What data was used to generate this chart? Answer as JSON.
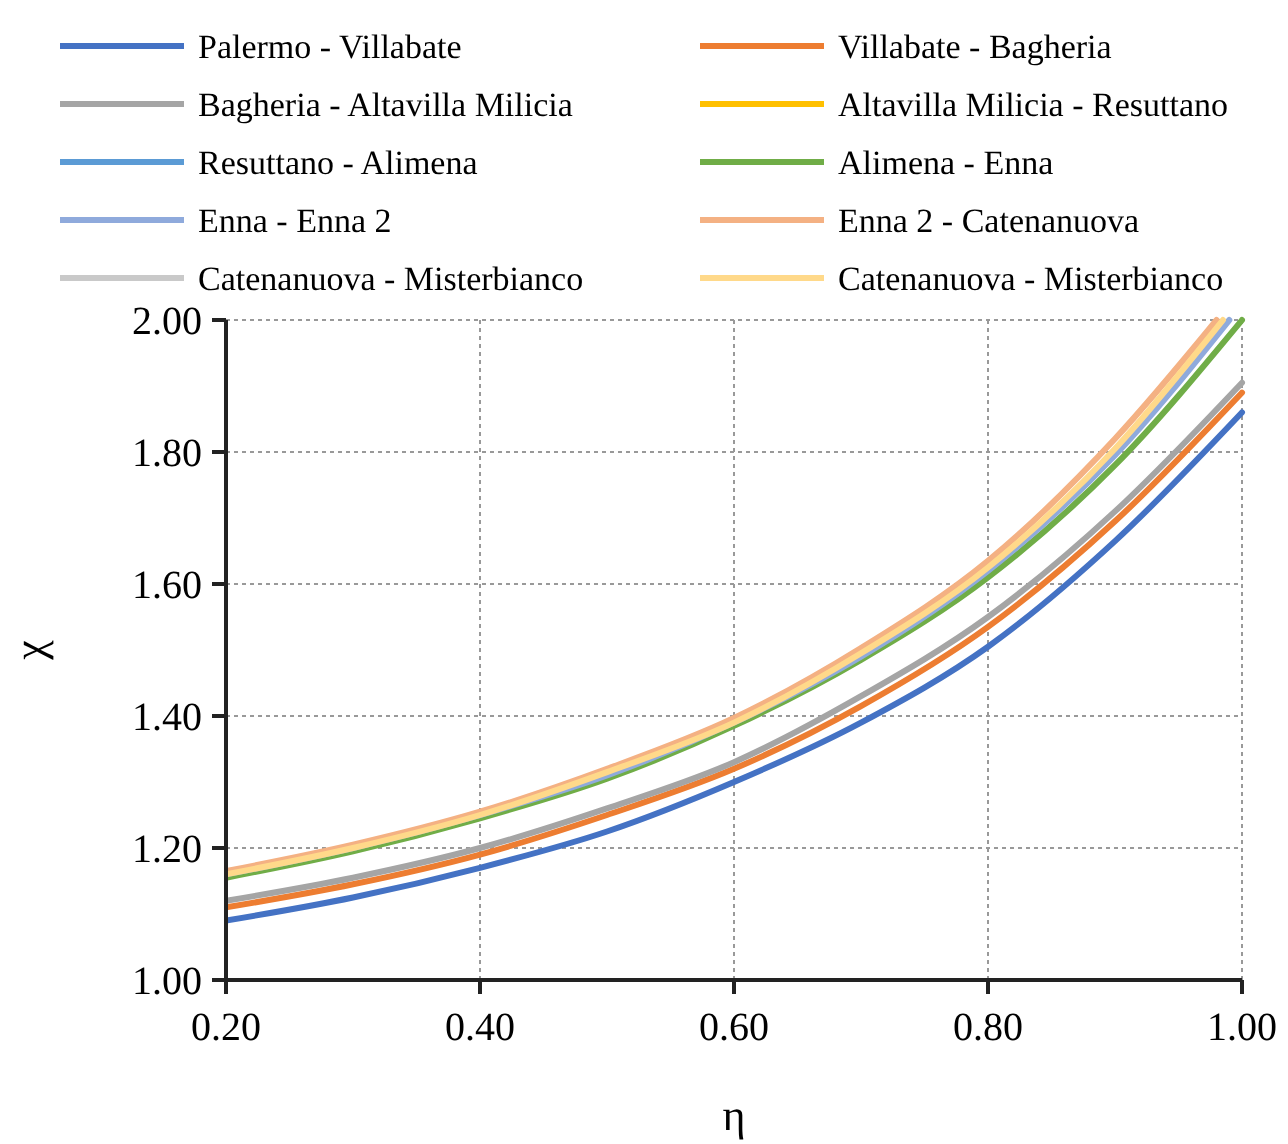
{
  "chart_data": {
    "type": "line",
    "xlabel": "η",
    "ylabel": "χ",
    "x": [
      0.2,
      0.3,
      0.4,
      0.5,
      0.6,
      0.7,
      0.8,
      0.9,
      1.0
    ],
    "xlim": [
      0.2,
      1.0
    ],
    "ylim": [
      1.0,
      2.0
    ],
    "xticks": [
      {
        "value": 0.2,
        "label": "0.20"
      },
      {
        "value": 0.4,
        "label": "0.40"
      },
      {
        "value": 0.6,
        "label": "0.60"
      },
      {
        "value": 0.8,
        "label": "0.80"
      },
      {
        "value": 1.0,
        "label": "1.00"
      }
    ],
    "yticks": [
      {
        "value": 1.0,
        "label": "1.00"
      },
      {
        "value": 1.2,
        "label": "1.20"
      },
      {
        "value": 1.4,
        "label": "1.40"
      },
      {
        "value": 1.6,
        "label": "1.60"
      },
      {
        "value": 1.8,
        "label": "1.80"
      },
      {
        "value": 2.0,
        "label": "2.00"
      }
    ],
    "grid": true,
    "legend": "top",
    "marker": "none",
    "line_style": "solid",
    "series": [
      {
        "name": "Palermo - Villabate",
        "color": "#4472c4",
        "values": [
          1.09,
          1.125,
          1.17,
          1.225,
          1.3,
          1.39,
          1.505,
          1.665,
          1.86
        ]
      },
      {
        "name": "Villabate - Bagheria",
        "color": "#ed7d31",
        "values": [
          1.11,
          1.145,
          1.19,
          1.25,
          1.32,
          1.415,
          1.535,
          1.695,
          1.89
        ]
      },
      {
        "name": "Bagheria - Altavilla Milicia",
        "color": "#a5a5a5",
        "values": [
          1.12,
          1.155,
          1.2,
          1.26,
          1.33,
          1.43,
          1.55,
          1.71,
          1.905
        ]
      },
      {
        "name": "Altavilla Milicia - Resuttano",
        "color": "#ffc000",
        "values": [
          null,
          null,
          null,
          null,
          null,
          null,
          null,
          null,
          null
        ]
      },
      {
        "name": "Resuttano - Alimena",
        "color": "#5b9bd5",
        "values": [
          null,
          null,
          null,
          null,
          null,
          null,
          null,
          null,
          null
        ]
      },
      {
        "name": "Alimena - Enna",
        "color": "#70ad47",
        "values": [
          1.155,
          1.195,
          1.245,
          1.305,
          1.385,
          1.485,
          1.61,
          1.78,
          2.0
        ]
      },
      {
        "name": "Enna - Enna 2",
        "color": "#8faadc",
        "x": [
          0.2,
          0.3,
          0.4,
          0.5,
          0.6,
          0.7,
          0.8,
          0.9,
          0.99
        ],
        "values": [
          1.16,
          1.2,
          1.25,
          1.31,
          1.39,
          1.49,
          1.62,
          1.795,
          2.0
        ]
      },
      {
        "name": "Enna 2 - Catenanuova",
        "color": "#f4b183",
        "x": [
          0.2,
          0.3,
          0.4,
          0.5,
          0.6,
          0.7,
          0.8,
          0.9,
          0.98
        ],
        "values": [
          1.165,
          1.205,
          1.255,
          1.32,
          1.397,
          1.503,
          1.635,
          1.82,
          2.0
        ]
      },
      {
        "name": "Catenanuova - Misterbianco",
        "color": "#c9c9c9",
        "values": [
          null,
          null,
          null,
          null,
          null,
          null,
          null,
          null,
          null
        ]
      },
      {
        "name": "Catenanuova - Misterbianco",
        "color": "#ffd98a",
        "x": [
          0.2,
          0.3,
          0.4,
          0.5,
          0.6,
          0.7,
          0.8,
          0.9,
          0.985
        ],
        "values": [
          1.16,
          1.2,
          1.25,
          1.315,
          1.39,
          1.495,
          1.625,
          1.805,
          2.0
        ]
      }
    ]
  }
}
